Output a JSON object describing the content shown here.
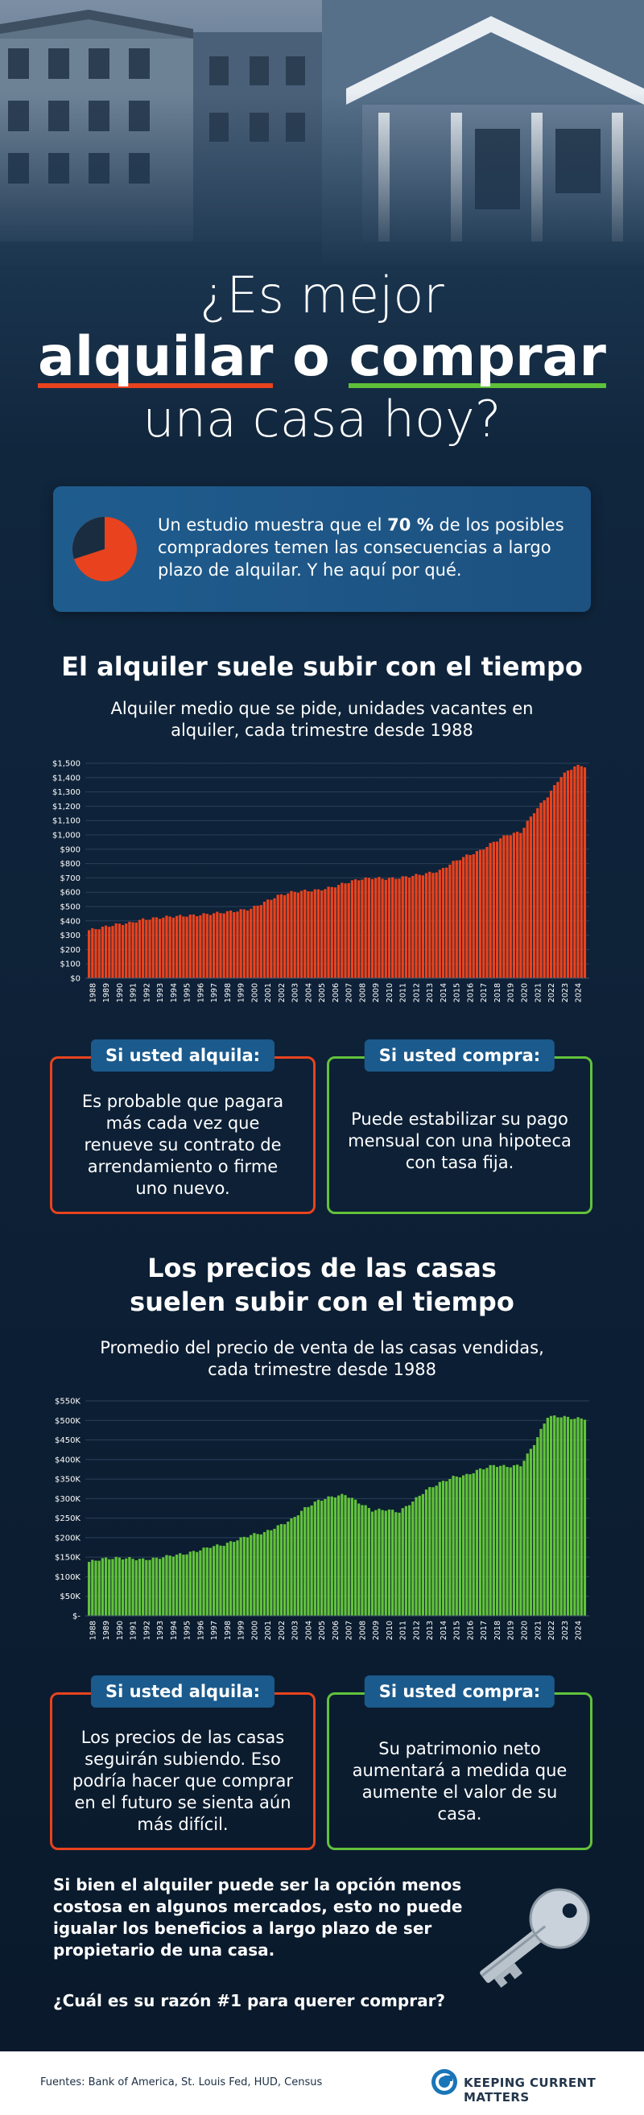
{
  "title": {
    "line1_prefix": "¿Es mejor",
    "word_rent": "alquilar",
    "connector": "o",
    "word_buy": "comprar",
    "line3": "una casa hoy?"
  },
  "colors": {
    "rent": "#e8431e",
    "buy": "#62c23c",
    "tag": "#1b5a8c",
    "intro": "#1f5c8e"
  },
  "intro": {
    "icon": "pie-icon",
    "pie_percent": 70,
    "pre": "Un estudio muestra que el",
    "highlight": "70 %",
    "post": "de los posibles compradores temen las consecuencias a largo plazo de alquilar. Y he aquí por qué."
  },
  "section1": {
    "heading": "El alquiler suele subir con el tiempo",
    "subtitle": "Alquiler medio que se pide, unidades vacantes en alquiler, cada trimestre desde 1988"
  },
  "section1_rent": {
    "tag": "Si usted alquila:",
    "text": "Es probable que pagara más cada vez que renueve su contrato de arrendamiento o firme uno nuevo."
  },
  "section1_buy": {
    "tag": "Si usted compra:",
    "text": "Puede estabilizar su pago mensual con una hipoteca con tasa fija."
  },
  "section2": {
    "heading_line1": "Los precios de las casas",
    "heading_line2": "suelen subir con el tiempo",
    "subtitle": "Promedio del precio de venta de las casas vendidas, cada trimestre desde 1988"
  },
  "section2_rent": {
    "tag": "Si usted alquila:",
    "text": "Los precios de las casas seguirán subiendo. Eso podría hacer que comprar en el futuro se sienta aún más difícil."
  },
  "section2_buy": {
    "tag": "Si usted compra:",
    "text": "Su patrimonio neto aumentará a medida que aumente el valor de su casa."
  },
  "closing": "Si bien el alquiler puede ser la opción menos costosa en algunos mercados, esto no puede igualar los beneficios a largo plazo de ser propietario de una casa.",
  "question": "¿Cuál es su razón #1 para querer comprar?",
  "footer": {
    "sources": "Fuentes: Bank of America, St. Louis Fed, HUD, Census",
    "logo_text": "KEEPING CURRENT MATTERS",
    "logo_icon": "kcm-logo-icon"
  },
  "chart_data": [
    {
      "type": "bar",
      "series_color": "#e8431e",
      "ylim": [
        0,
        1500
      ],
      "yticks": [
        "$0",
        "$100",
        "$200",
        "$300",
        "$400",
        "$500",
        "$600",
        "$700",
        "$800",
        "$900",
        "$1,000",
        "$1,100",
        "$1,200",
        "$1,300",
        "$1,400",
        "$1,500"
      ],
      "x_start": 1988,
      "x_end": 2024,
      "categories": [
        "1988",
        "1989",
        "1990",
        "1991",
        "1992",
        "1993",
        "1994",
        "1995",
        "1996",
        "1997",
        "1998",
        "1999",
        "2000",
        "2001",
        "2002",
        "2003",
        "2004",
        "2005",
        "2006",
        "2007",
        "2008",
        "2009",
        "2010",
        "2011",
        "2012",
        "2013",
        "2014",
        "2015",
        "2016",
        "2017",
        "2018",
        "2019",
        "2020",
        "2021",
        "2022",
        "2023",
        "2024"
      ],
      "annual_values": [
        335,
        355,
        375,
        385,
        410,
        420,
        430,
        435,
        440,
        450,
        460,
        470,
        485,
        530,
        575,
        600,
        610,
        615,
        635,
        665,
        690,
        700,
        695,
        700,
        715,
        730,
        750,
        810,
        855,
        890,
        950,
        1000,
        1020,
        1160,
        1270,
        1410,
        1480
      ]
    },
    {
      "type": "bar",
      "series_color": "#62c23c",
      "ylim": [
        0,
        550000
      ],
      "yticks": [
        "$-",
        "$50K",
        "$100K",
        "$150K",
        "$200K",
        "$250K",
        "$300K",
        "$350K",
        "$400K",
        "$450K",
        "$500K",
        "$550K"
      ],
      "x_start": 1988,
      "x_end": 2024,
      "categories": [
        "1988",
        "1989",
        "1990",
        "1991",
        "1992",
        "1993",
        "1994",
        "1995",
        "1996",
        "1997",
        "1998",
        "1999",
        "2000",
        "2001",
        "2002",
        "2003",
        "2004",
        "2005",
        "2006",
        "2007",
        "2008",
        "2009",
        "2010",
        "2011",
        "2012",
        "2013",
        "2014",
        "2015",
        "2016",
        "2017",
        "2018",
        "2019",
        "2020",
        "2021",
        "2022",
        "2023",
        "2024"
      ],
      "annual_values": [
        138000,
        146000,
        148000,
        147000,
        144000,
        147000,
        154000,
        158000,
        166000,
        177000,
        182000,
        195000,
        207000,
        213000,
        229000,
        246000,
        275000,
        295000,
        305000,
        310000,
        290000,
        270000,
        272000,
        266000,
        293000,
        322000,
        340000,
        355000,
        360000,
        375000,
        385000,
        382000,
        385000,
        440000,
        510000,
        510000,
        505000
      ]
    }
  ]
}
